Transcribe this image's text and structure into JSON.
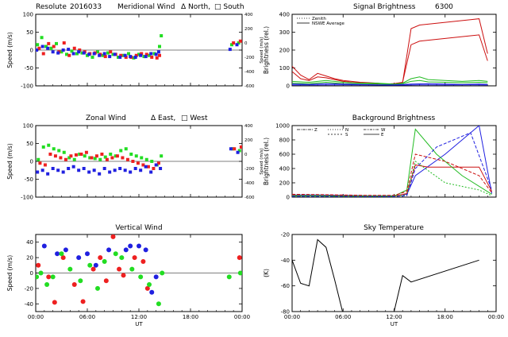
{
  "chart_data": [
    {
      "type": "scatter",
      "title_parts": [
        "Resolute",
        "2016033",
        "Meridional Wind",
        "Δ North,",
        "□ South"
      ],
      "ylabel": "Speed (m/s)",
      "ylabel_right": "Speed (m/s)",
      "ylim": [
        -100,
        100
      ],
      "yticks": [
        "-100",
        "-50",
        "0",
        "50",
        "100"
      ],
      "yticks_right": [
        "-600",
        "-400",
        "-200",
        "0",
        "200",
        "400"
      ],
      "xlim": [
        0,
        24
      ],
      "xticks": [
        0,
        6,
        12,
        18,
        24
      ],
      "colors": {
        "zenith": "#2020e0",
        "north_south_a": "#ee2020",
        "north_south_b": "#22dd22"
      },
      "series": [
        {
          "color": "#22dd22",
          "x": [
            0.2,
            0.7,
            1.2,
            1.8,
            2.4,
            3.0,
            3.6,
            4.2,
            4.8,
            5.4,
            6.0,
            6.6,
            7.2,
            7.8,
            8.4,
            9.0,
            9.6,
            10.2,
            10.8,
            11.4,
            12.0,
            12.6,
            13.2,
            13.8,
            14.4,
            14.6,
            22.8,
            23.6
          ],
          "y": [
            15,
            35,
            10,
            5,
            18,
            -5,
            -12,
            -3,
            -10,
            -8,
            -15,
            -20,
            -5,
            -15,
            -8,
            -12,
            -20,
            -15,
            -10,
            -22,
            -12,
            -18,
            -15,
            -10,
            10,
            40,
            15,
            20
          ]
        },
        {
          "color": "#ee2020",
          "x": [
            0.4,
            0.9,
            1.5,
            2.1,
            2.7,
            3.3,
            3.9,
            4.5,
            5.1,
            5.7,
            6.3,
            6.9,
            7.5,
            8.1,
            8.7,
            9.3,
            9.9,
            10.5,
            11.1,
            11.7,
            12.3,
            12.9,
            13.5,
            14.1,
            14.4,
            23.0,
            23.8
          ],
          "y": [
            5,
            -10,
            18,
            10,
            -5,
            20,
            -15,
            5,
            0,
            -5,
            -10,
            -8,
            -12,
            -18,
            -5,
            -12,
            -15,
            -20,
            -20,
            -15,
            -10,
            -12,
            -20,
            -22,
            -15,
            20,
            25
          ]
        },
        {
          "color": "#2020e0",
          "x": [
            0.1,
            0.8,
            1.4,
            2.0,
            2.6,
            3.2,
            3.8,
            4.4,
            5.0,
            5.6,
            6.2,
            6.8,
            7.4,
            8.0,
            8.6,
            9.2,
            9.8,
            10.4,
            11.0,
            11.6,
            12.2,
            12.8,
            13.4,
            14.0,
            14.3,
            22.6,
            23.4
          ],
          "y": [
            0,
            10,
            5,
            -5,
            -8,
            0,
            2,
            -10,
            -5,
            -8,
            -12,
            -10,
            -15,
            -10,
            -18,
            -12,
            -20,
            -15,
            -18,
            -20,
            -15,
            -18,
            -10,
            -12,
            -5,
            2,
            15
          ]
        }
      ]
    },
    {
      "type": "line",
      "title_parts": [
        "Signal Brightness",
        "6300"
      ],
      "ylabel": "Brightness (rel.)",
      "ylim": [
        0,
        400
      ],
      "yticks": [
        "0",
        "100",
        "200",
        "300",
        "400"
      ],
      "xlim": [
        0,
        24
      ],
      "xticks": [
        0,
        6,
        12,
        18,
        24
      ],
      "legend": [
        "Zenith",
        "NSWE Average"
      ],
      "series": [
        {
          "color": "#cc1010",
          "x": [
            0,
            1,
            2,
            3,
            4,
            5,
            6,
            7,
            8,
            9,
            10,
            11,
            12,
            13,
            14,
            15,
            16,
            17,
            18,
            19,
            20,
            21,
            22,
            23
          ],
          "y": [
            110,
            60,
            35,
            70,
            55,
            40,
            30,
            25,
            20,
            18,
            15,
            10,
            12,
            20,
            230,
            250,
            255,
            260,
            265,
            270,
            275,
            280,
            285,
            140
          ]
        },
        {
          "color": "#cc1010",
          "x": [
            0,
            1,
            2,
            3,
            4,
            5,
            6,
            7,
            8,
            9,
            10,
            11,
            12,
            13,
            14,
            15,
            16,
            17,
            18,
            19,
            20,
            21,
            22,
            23
          ],
          "y": [
            80,
            40,
            30,
            50,
            45,
            35,
            25,
            20,
            18,
            15,
            12,
            10,
            12,
            18,
            320,
            340,
            345,
            350,
            355,
            360,
            365,
            370,
            375,
            180
          ]
        },
        {
          "color": "#22bb22",
          "x": [
            0,
            2,
            4,
            6,
            8,
            10,
            12,
            13,
            14,
            15,
            16,
            18,
            20,
            22,
            23
          ],
          "y": [
            25,
            20,
            30,
            20,
            15,
            15,
            10,
            15,
            40,
            50,
            35,
            30,
            25,
            30,
            25
          ]
        },
        {
          "color": "#22bb22",
          "x": [
            0,
            2,
            4,
            6,
            8,
            10,
            12,
            13,
            14,
            15,
            16,
            18,
            20,
            22,
            23
          ],
          "y": [
            15,
            12,
            20,
            12,
            10,
            10,
            8,
            12,
            25,
            30,
            22,
            20,
            18,
            20,
            18
          ]
        },
        {
          "color": "#2020e0",
          "x": [
            0,
            2,
            4,
            6,
            8,
            10,
            12,
            14,
            16,
            18,
            20,
            22,
            23
          ],
          "y": [
            10,
            8,
            12,
            10,
            8,
            6,
            6,
            10,
            12,
            10,
            8,
            10,
            8
          ]
        },
        {
          "color": "#2020e0",
          "x": [
            0,
            3,
            6,
            9,
            12,
            15,
            18,
            21,
            23
          ],
          "y": [
            5,
            5,
            6,
            5,
            4,
            6,
            5,
            6,
            5
          ]
        }
      ]
    },
    {
      "type": "scatter",
      "title_parts": [
        "Zonal Wind",
        "Δ East,",
        "□ West"
      ],
      "ylabel": "Speed (m/s)",
      "ylabel_right": "Speed (m/s)",
      "ylim": [
        -100,
        100
      ],
      "yticks": [
        "-100",
        "-50",
        "0",
        "50",
        "100"
      ],
      "yticks_right": [
        "-600",
        "-400",
        "-200",
        "0",
        "200",
        "400"
      ],
      "xlim": [
        0,
        24
      ],
      "xticks": [
        0,
        6,
        12,
        18,
        24
      ],
      "series": [
        {
          "color": "#22dd22",
          "x": [
            0.3,
            0.9,
            1.5,
            2.1,
            2.7,
            3.3,
            3.9,
            4.5,
            5.1,
            5.7,
            6.3,
            6.9,
            7.5,
            8.1,
            8.7,
            9.3,
            9.9,
            10.5,
            11.1,
            11.7,
            12.3,
            12.9,
            13.5,
            14.1,
            14.6,
            22.9,
            23.7
          ],
          "y": [
            5,
            40,
            45,
            35,
            30,
            25,
            10,
            5,
            20,
            15,
            10,
            8,
            5,
            12,
            20,
            15,
            30,
            35,
            20,
            15,
            10,
            5,
            0,
            -10,
            15,
            35,
            30
          ]
        },
        {
          "color": "#ee2020",
          "x": [
            0.5,
            1.1,
            1.7,
            2.3,
            2.9,
            3.5,
            4.1,
            4.7,
            5.3,
            5.9,
            6.5,
            7.1,
            7.7,
            8.3,
            8.9,
            9.5,
            10.1,
            10.7,
            11.3,
            11.9,
            12.5,
            13.1,
            13.7,
            14.3,
            23.1,
            23.9
          ],
          "y": [
            -5,
            -10,
            20,
            15,
            10,
            5,
            15,
            18,
            20,
            25,
            10,
            15,
            20,
            5,
            10,
            15,
            10,
            5,
            0,
            -5,
            -10,
            -15,
            -20,
            -5,
            35,
            40
          ]
        },
        {
          "color": "#2020e0",
          "x": [
            0.2,
            0.8,
            1.4,
            2.0,
            2.6,
            3.2,
            3.8,
            4.4,
            5.0,
            5.6,
            6.2,
            6.8,
            7.4,
            8.0,
            8.6,
            9.2,
            9.8,
            10.4,
            11.0,
            11.6,
            12.2,
            12.8,
            13.4,
            14.0,
            14.5,
            22.7,
            23.5
          ],
          "y": [
            -30,
            -25,
            -35,
            -20,
            -25,
            -30,
            -20,
            -15,
            -25,
            -20,
            -30,
            -25,
            -35,
            -20,
            -30,
            -25,
            -20,
            -25,
            -30,
            -20,
            -25,
            -15,
            -30,
            -10,
            -20,
            35,
            25
          ]
        }
      ]
    },
    {
      "type": "line",
      "title_parts": [
        "Background Brightness"
      ],
      "ylabel": "Brightness (rel.)",
      "ylim": [
        0,
        1000
      ],
      "yticks": [
        "0",
        "200",
        "400",
        "600",
        "800",
        "1000"
      ],
      "xlim": [
        0,
        24
      ],
      "xticks": [
        0,
        6,
        12,
        18,
        24
      ],
      "legend": [
        "Z",
        "N",
        "S",
        "W",
        "E"
      ],
      "series": [
        {
          "color": "#2020e0",
          "x": [
            0,
            3,
            6,
            9,
            12,
            13.5,
            14.5,
            18,
            22,
            23.5
          ],
          "y": [
            30,
            30,
            25,
            20,
            20,
            40,
            300,
            600,
            1000,
            50
          ]
        },
        {
          "color": "#cc1010",
          "x": [
            0,
            3,
            6,
            9,
            12,
            13.5,
            14.5,
            16,
            20,
            22,
            23.5
          ],
          "y": [
            25,
            20,
            20,
            15,
            15,
            50,
            450,
            420,
            420,
            420,
            80
          ]
        },
        {
          "color": "#22bb22",
          "x": [
            0,
            3,
            6,
            9,
            12,
            13.5,
            14.5,
            17,
            20,
            23.5
          ],
          "y": [
            20,
            20,
            15,
            15,
            15,
            100,
            950,
            600,
            300,
            40
          ]
        },
        {
          "color": "#22bb22",
          "x": [
            0,
            3,
            6,
            9,
            12,
            13.5,
            14.5,
            18,
            22,
            23.5
          ],
          "y": [
            15,
            15,
            10,
            10,
            10,
            30,
            500,
            200,
            100,
            20
          ]
        },
        {
          "color": "#cc1010",
          "x": [
            0,
            3,
            6,
            9,
            12,
            13.5,
            14.5,
            18,
            22,
            23.5
          ],
          "y": [
            40,
            35,
            30,
            25,
            25,
            80,
            600,
            500,
            300,
            60
          ]
        },
        {
          "color": "#2020e0",
          "x": [
            0,
            3,
            6,
            9,
            12,
            13.5,
            14.5,
            17,
            21,
            23.5
          ],
          "y": [
            10,
            10,
            10,
            8,
            8,
            20,
            400,
            700,
            900,
            100
          ]
        }
      ]
    },
    {
      "type": "scatter",
      "title_parts": [
        "Vertical Wind"
      ],
      "ylabel": "Speed (m/s)",
      "ylim": [
        -50,
        50
      ],
      "yticks": [
        "-40",
        "-20",
        "0",
        "20",
        "40"
      ],
      "xlim": [
        0,
        24
      ],
      "xticks": [
        0,
        6,
        12,
        18,
        24
      ],
      "series": [
        {
          "color": "#2020e0",
          "x": [
            1.0,
            2.5,
            3.5,
            5.0,
            6.0,
            7.0,
            8.5,
            10.5,
            11.0,
            12.0,
            12.8,
            13.5,
            14.0
          ],
          "y": [
            35,
            25,
            30,
            20,
            25,
            10,
            30,
            30,
            35,
            35,
            30,
            -25,
            -5
          ]
        },
        {
          "color": "#ee2020",
          "x": [
            0.3,
            1.5,
            2.2,
            3.2,
            4.5,
            5.5,
            6.7,
            7.5,
            8.2,
            9.0,
            9.7,
            10.2,
            11.5,
            12.5,
            13.0,
            23.7
          ],
          "y": [
            10,
            -5,
            -38,
            20,
            -15,
            -37,
            5,
            20,
            -10,
            47,
            5,
            -3,
            20,
            15,
            -20,
            20
          ]
        },
        {
          "color": "#22dd22",
          "x": [
            0.1,
            0.6,
            1.3,
            2.0,
            3.0,
            4.0,
            5.2,
            6.3,
            7.2,
            8.0,
            9.3,
            10.0,
            11.2,
            12.2,
            13.2,
            14.3,
            14.7,
            22.5,
            23.8
          ],
          "y": [
            -5,
            0,
            -15,
            -5,
            25,
            5,
            -10,
            10,
            -20,
            15,
            25,
            20,
            5,
            -5,
            -15,
            -40,
            0,
            -5,
            0
          ]
        }
      ]
    },
    {
      "type": "line",
      "title_parts": [
        "Sky Temperature"
      ],
      "ylabel": "(K)",
      "ylim": [
        -80,
        -20
      ],
      "yticks": [
        "-80",
        "-60",
        "-40",
        "-20"
      ],
      "xlim": [
        0,
        24
      ],
      "xticks": [
        0,
        6,
        12,
        18,
        24
      ],
      "series": [
        {
          "color": "#000000",
          "x": [
            0,
            1,
            2,
            3,
            4,
            5,
            6
          ],
          "y": [
            -40,
            -58,
            -60,
            -24,
            -30,
            -55,
            -82
          ]
        },
        {
          "color": "#000000",
          "x": [
            12,
            13,
            14,
            22
          ],
          "y": [
            -80,
            -52,
            -57,
            -40
          ]
        }
      ]
    }
  ],
  "xtick_labels": [
    "00:00",
    "06:00",
    "12:00",
    "18:00",
    "00:00"
  ],
  "xlabel": "UT"
}
